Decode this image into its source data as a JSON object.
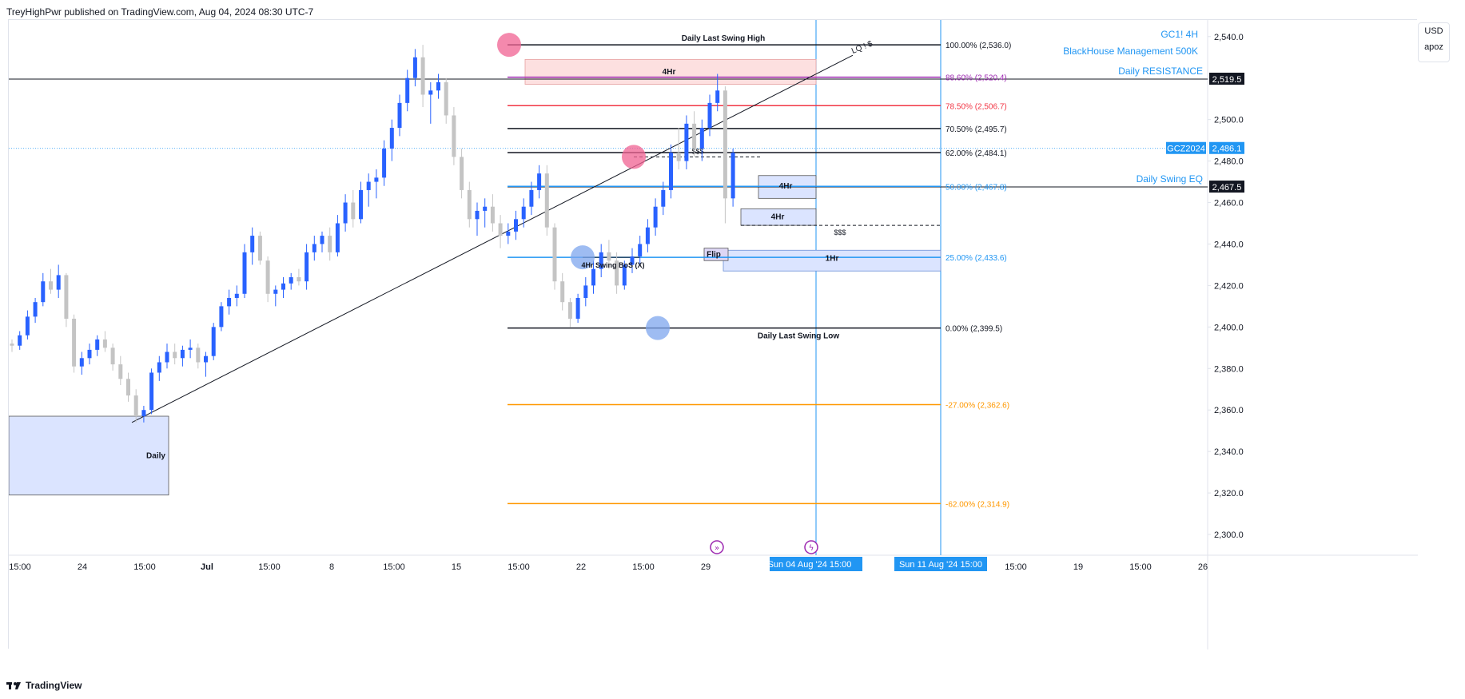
{
  "header": {
    "published_line": "TreyHighPwr published on TradingView.com, Aug 04, 2024 08:30 UTC-7"
  },
  "footer": {
    "brand": "TradingView",
    "logo_icon": "tradingview-logo-icon"
  },
  "currency_box": {
    "currency": "USD",
    "scale": "apoz"
  },
  "colors": {
    "bull": "#2962ff",
    "bear": "#c4c4c4",
    "black": "#131722",
    "red": "#f23645",
    "orange": "#ff9800",
    "purple": "#9c27b0",
    "blue_line": "#2196f3",
    "grid": "#e0e3eb",
    "zone_blue": "#dbe4ff",
    "zone_red": "#fde0e0",
    "pink": "#f06292",
    "blue_circle": "#7ea6ee"
  },
  "chart_data": {
    "type": "candlestick",
    "symbol_label": "GC1! 4H",
    "subtitle": "BlackHouse Management 500K",
    "y_axis": {
      "min": 2290,
      "max": 2548,
      "ticks": [
        2300,
        2320,
        2340,
        2360,
        2380,
        2400,
        2420,
        2440,
        2460,
        2480,
        2500,
        2520,
        2540
      ]
    },
    "x_ticks": [
      "15:00",
      "24",
      "15:00",
      "Jul",
      "15:00",
      "8",
      "15:00",
      "15",
      "15:00",
      "22",
      "15:00",
      "29",
      "15:00",
      "19",
      "15:00",
      "26"
    ],
    "x_ticks_bold": [
      "Jul"
    ],
    "time_highlights": [
      "Sun 04 Aug '24",
      "15:00",
      "Sun 11 Aug '24",
      "15:00"
    ],
    "price_tags": [
      {
        "price": 2519.5,
        "label": "2,519.5",
        "style": "black"
      },
      {
        "price": 2486.1,
        "label": "2,486.1",
        "style": "blue",
        "symbol": "GCZ2024"
      },
      {
        "price": 2467.5,
        "label": "2,467.5",
        "style": "black"
      }
    ],
    "fib_levels": [
      {
        "label": "100.00% (2,536.0)",
        "price": 2536.0,
        "color": "#131722"
      },
      {
        "label": "88.60% (2,520.4)",
        "price": 2520.4,
        "color": "#9c27b0"
      },
      {
        "label": "78.50% (2,506.7)",
        "price": 2506.7,
        "color": "#f23645"
      },
      {
        "label": "70.50% (2,495.7)",
        "price": 2495.7,
        "color": "#131722"
      },
      {
        "label": "62.00% (2,484.1)",
        "price": 2484.1,
        "color": "#131722"
      },
      {
        "label": "50.00% (2,467.8)",
        "price": 2467.8,
        "color": "#2196f3"
      },
      {
        "label": "25.00% (2,433.6)",
        "price": 2433.6,
        "color": "#2196f3"
      },
      {
        "label": "0.00% (2,399.5)",
        "price": 2399.5,
        "color": "#131722"
      },
      {
        "label": "-27.00% (2,362.6)",
        "price": 2362.6,
        "color": "#ff9800"
      },
      {
        "label": "-62.00% (2,314.9)",
        "price": 2314.9,
        "color": "#ff9800"
      }
    ],
    "annotations": {
      "daily_high": "Daily Last Swing High",
      "daily_low": "Daily Last Swing Low",
      "daily_resistance": "Daily RESISTANCE",
      "daily_swing_eq": "Daily Swing EQ",
      "zone_4hr_top": "4Hr",
      "zone_4hr_a": "4Hr",
      "zone_4hr_b": "4Hr",
      "zone_1hr": "1Hr",
      "zone_daily": "Daily",
      "bos": "4Hr Swing BoS (X)",
      "flip": "Flip",
      "liq_a": "$$$",
      "liq_b": "$$$",
      "trendline_label": "LQ ! $"
    },
    "candles": [
      [
        2392,
        2394,
        2388,
        2391
      ],
      [
        2391,
        2398,
        2389,
        2396
      ],
      [
        2396,
        2408,
        2394,
        2405
      ],
      [
        2405,
        2414,
        2402,
        2412
      ],
      [
        2412,
        2426,
        2410,
        2422
      ],
      [
        2422,
        2428,
        2416,
        2418
      ],
      [
        2418,
        2430,
        2414,
        2425
      ],
      [
        2425,
        2426,
        2400,
        2404
      ],
      [
        2404,
        2406,
        2378,
        2381
      ],
      [
        2381,
        2388,
        2377,
        2385
      ],
      [
        2385,
        2392,
        2382,
        2389
      ],
      [
        2389,
        2396,
        2386,
        2394
      ],
      [
        2394,
        2398,
        2388,
        2390
      ],
      [
        2390,
        2392,
        2379,
        2382
      ],
      [
        2382,
        2386,
        2372,
        2375
      ],
      [
        2375,
        2378,
        2364,
        2367
      ],
      [
        2367,
        2370,
        2354,
        2357
      ],
      [
        2357,
        2362,
        2354,
        2360
      ],
      [
        2360,
        2380,
        2358,
        2378
      ],
      [
        2378,
        2386,
        2374,
        2383
      ],
      [
        2383,
        2392,
        2380,
        2388
      ],
      [
        2388,
        2392,
        2382,
        2385
      ],
      [
        2385,
        2391,
        2381,
        2389
      ],
      [
        2389,
        2394,
        2385,
        2390
      ],
      [
        2390,
        2392,
        2380,
        2383
      ],
      [
        2383,
        2388,
        2376,
        2386
      ],
      [
        2386,
        2402,
        2384,
        2400
      ],
      [
        2400,
        2412,
        2398,
        2410
      ],
      [
        2410,
        2418,
        2406,
        2414
      ],
      [
        2414,
        2420,
        2410,
        2416
      ],
      [
        2416,
        2440,
        2414,
        2436
      ],
      [
        2436,
        2448,
        2430,
        2444
      ],
      [
        2444,
        2446,
        2430,
        2432
      ],
      [
        2432,
        2434,
        2412,
        2416
      ],
      [
        2416,
        2420,
        2410,
        2418
      ],
      [
        2418,
        2424,
        2414,
        2421
      ],
      [
        2421,
        2426,
        2418,
        2424
      ],
      [
        2424,
        2428,
        2420,
        2422
      ],
      [
        2422,
        2440,
        2418,
        2436
      ],
      [
        2436,
        2444,
        2432,
        2440
      ],
      [
        2440,
        2446,
        2436,
        2444
      ],
      [
        2444,
        2448,
        2432,
        2436
      ],
      [
        2436,
        2454,
        2434,
        2450
      ],
      [
        2450,
        2464,
        2446,
        2460
      ],
      [
        2460,
        2466,
        2448,
        2452
      ],
      [
        2452,
        2470,
        2450,
        2466
      ],
      [
        2466,
        2474,
        2458,
        2470
      ],
      [
        2470,
        2476,
        2462,
        2472
      ],
      [
        2472,
        2490,
        2468,
        2486
      ],
      [
        2486,
        2500,
        2480,
        2496
      ],
      [
        2496,
        2512,
        2492,
        2508
      ],
      [
        2508,
        2524,
        2504,
        2520
      ],
      [
        2520,
        2534,
        2516,
        2530
      ],
      [
        2530,
        2536,
        2506,
        2512
      ],
      [
        2512,
        2518,
        2498,
        2514
      ],
      [
        2514,
        2522,
        2510,
        2518
      ],
      [
        2518,
        2520,
        2498,
        2502
      ],
      [
        2502,
        2506,
        2478,
        2482
      ],
      [
        2482,
        2486,
        2462,
        2466
      ],
      [
        2466,
        2470,
        2448,
        2452
      ],
      [
        2452,
        2460,
        2444,
        2456
      ],
      [
        2456,
        2462,
        2448,
        2458
      ],
      [
        2458,
        2464,
        2446,
        2450
      ],
      [
        2450,
        2454,
        2438,
        2444
      ],
      [
        2444,
        2450,
        2440,
        2446
      ],
      [
        2446,
        2456,
        2442,
        2452
      ],
      [
        2452,
        2462,
        2448,
        2458
      ],
      [
        2458,
        2470,
        2454,
        2466
      ],
      [
        2466,
        2478,
        2462,
        2474
      ],
      [
        2474,
        2478,
        2444,
        2448
      ],
      [
        2448,
        2450,
        2418,
        2422
      ],
      [
        2422,
        2426,
        2408,
        2412
      ],
      [
        2412,
        2414,
        2400,
        2404
      ],
      [
        2404,
        2416,
        2402,
        2414
      ],
      [
        2414,
        2424,
        2410,
        2420
      ],
      [
        2420,
        2432,
        2416,
        2428
      ],
      [
        2428,
        2440,
        2424,
        2436
      ],
      [
        2436,
        2442,
        2428,
        2432
      ],
      [
        2432,
        2436,
        2416,
        2420
      ],
      [
        2420,
        2432,
        2418,
        2430
      ],
      [
        2430,
        2438,
        2426,
        2434
      ],
      [
        2434,
        2444,
        2430,
        2440
      ],
      [
        2440,
        2452,
        2436,
        2448
      ],
      [
        2448,
        2462,
        2444,
        2458
      ],
      [
        2458,
        2470,
        2454,
        2466
      ],
      [
        2466,
        2488,
        2462,
        2484
      ],
      [
        2484,
        2496,
        2476,
        2480
      ],
      [
        2480,
        2502,
        2476,
        2498
      ],
      [
        2498,
        2504,
        2482,
        2486
      ],
      [
        2486,
        2500,
        2480,
        2496
      ],
      [
        2496,
        2512,
        2492,
        2508
      ],
      [
        2508,
        2522,
        2504,
        2514
      ],
      [
        2514,
        2516,
        2450,
        2462
      ],
      [
        2462,
        2486,
        2458,
        2484
      ]
    ]
  }
}
